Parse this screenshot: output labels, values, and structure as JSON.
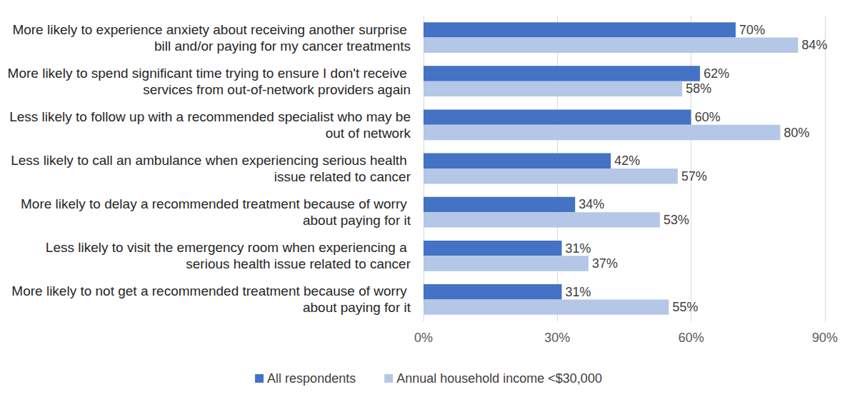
{
  "chart_data": {
    "type": "bar",
    "orientation": "horizontal",
    "categories": [
      "More likely to experience anxiety about receiving another surprise bill and/or paying for my cancer treatments",
      "More likely to spend significant time trying to ensure I don't receive services from out-of-network providers again",
      "Less likely to follow up with a recommended specialist who may be out of network",
      "Less likely to call an ambulance when experiencing serious health issue related to cancer",
      "More likely to delay a recommended treatment because of worry about paying for it",
      "Less likely to visit the emergency room when experiencing a serious health issue related to cancer",
      "More likely to not get a recommended treatment because of worry about paying for it"
    ],
    "series": [
      {
        "name": "All respondents",
        "color": "#4472c4",
        "values": [
          70,
          62,
          60,
          42,
          34,
          31,
          31
        ],
        "value_labels": [
          "70%",
          "62%",
          "60%",
          "42%",
          "34%",
          "31%",
          "31%"
        ]
      },
      {
        "name": "Annual household income <$30,000",
        "color": "#b4c7e7",
        "values": [
          84,
          58,
          80,
          57,
          53,
          37,
          55
        ],
        "value_labels": [
          "84%",
          "58%",
          "80%",
          "57%",
          "53%",
          "37%",
          "55%"
        ]
      }
    ],
    "xlim": [
      0,
      90
    ],
    "xticks": [
      {
        "value": 0,
        "label": "0%"
      },
      {
        "value": 30,
        "label": "30%"
      },
      {
        "value": 60,
        "label": "60%"
      },
      {
        "value": 90,
        "label": "90%"
      }
    ],
    "grid": true,
    "data_labels": true,
    "legend": "bottom"
  }
}
